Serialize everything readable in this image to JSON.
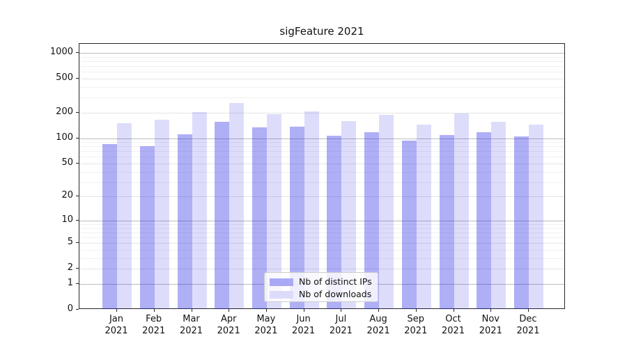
{
  "chart_data": {
    "type": "bar",
    "title": "sigFeature 2021",
    "x_categories": [
      "Jan",
      "Feb",
      "Mar",
      "Apr",
      "May",
      "Jun",
      "Jul",
      "Aug",
      "Sep",
      "Oct",
      "Nov",
      "Dec"
    ],
    "x_year_label": "2021",
    "yscale": "log1p",
    "ylim": [
      0,
      1280
    ],
    "yticks": [
      0,
      1,
      2,
      5,
      10,
      20,
      50,
      100,
      200,
      500,
      1000
    ],
    "minor_yticks": [
      3,
      4,
      6,
      7,
      8,
      9,
      30,
      40,
      60,
      70,
      80,
      90,
      300,
      400,
      600,
      700,
      800,
      900
    ],
    "grid": true,
    "series": [
      {
        "name": "Nb of distinct IPs",
        "color_hex": "#a9a9f5",
        "color_rgba": "rgba(25,25,230,0.35)",
        "values": [
          85,
          81,
          110,
          155,
          135,
          136,
          106,
          118,
          93,
          108,
          117,
          105
        ]
      },
      {
        "name": "Nb of downloads",
        "color_hex": "#dcdcfa",
        "color_rgba": "rgba(25,25,230,0.15)",
        "values": [
          150,
          164,
          203,
          257,
          193,
          207,
          158,
          188,
          144,
          194,
          155,
          145
        ]
      }
    ],
    "legend": {
      "position": "lower center",
      "entries": [
        "Nb of distinct IPs",
        "Nb of downloads"
      ]
    },
    "grid_colors": {
      "major": "#bcbcbc",
      "labeled": "#e4e4e4",
      "minor": "#f1f1f1"
    },
    "spine_color": "#262626"
  }
}
